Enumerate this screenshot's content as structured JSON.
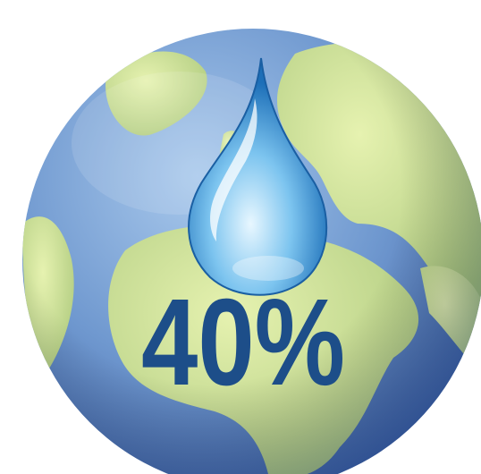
{
  "caption": "40%"
}
